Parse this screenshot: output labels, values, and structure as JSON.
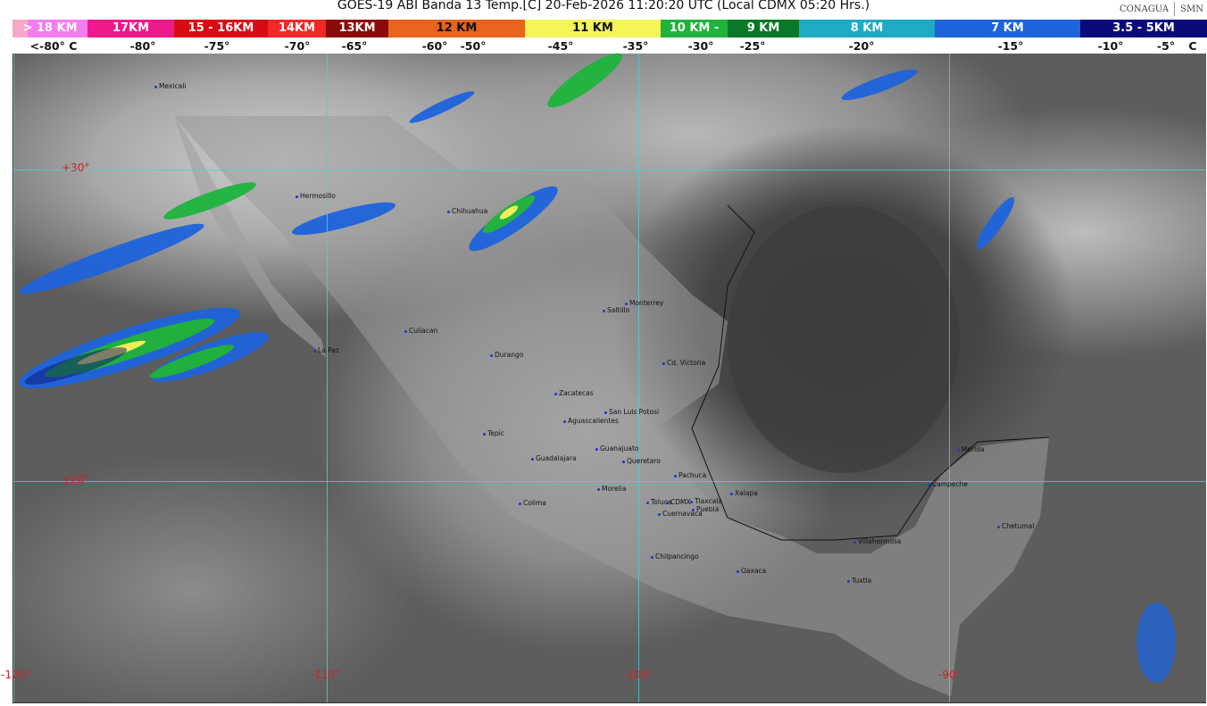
{
  "title": "GOES-19 ABI Banda 13 Temp.[C] 20-Feb-2026 11:20:20 UTC (Local CDMX  05:20 Hrs.)",
  "logos": [
    "CONAGUA",
    "SMN"
  ],
  "legend": [
    {
      "label": "> 18 KM",
      "color": "#f47ef0"
    },
    {
      "label": "17KM",
      "color": "#f0198c"
    },
    {
      "label": "15 - 16KM",
      "color": "#d90a14"
    },
    {
      "label": "14KM",
      "color": "#f02828"
    },
    {
      "label": "13KM",
      "color": "#8c0a0a"
    },
    {
      "label": "12 KM",
      "color": "#e8641c"
    },
    {
      "label": "11 KM",
      "color": "#f5f55a"
    },
    {
      "label": "10 KM -",
      "color": "#1eb43c"
    },
    {
      "label": "9 KM",
      "color": "#0a7828"
    },
    {
      "label": "8 KM",
      "color": "#1eaac3"
    },
    {
      "label": "7 KM",
      "color": "#1e64dc"
    },
    {
      "label": "3.5 - 5KM",
      "color": "#0a0a78"
    }
  ],
  "temps": [
    "<-80° C",
    "-80°",
    "-75°",
    "-70°",
    "-65°",
    "-60°",
    "-50°",
    "-45°",
    "-35°",
    "-30°",
    "-25°",
    "-20°",
    "-15°",
    "-10°",
    "-5°",
    "C"
  ],
  "grid": {
    "lat": [
      "+30°",
      "+20°"
    ],
    "lon": [
      "-120°",
      "-110°",
      "-100°",
      "-90°"
    ]
  },
  "cities": [
    "Mexicali",
    "Hermosillo",
    "Chihuahua",
    "La Paz",
    "Culiacan",
    "Durango",
    "Saltillo",
    "Monterrey",
    "Cd. Victoria",
    "Zacatecas",
    "San Luis Potosi",
    "Aguascalientes",
    "Tepic",
    "Guanajuato",
    "Guadalajara",
    "Queretaro",
    "Pachuca",
    "Morelia",
    "Xalapa",
    "Colima",
    "Toluca",
    "CDMX",
    "Tlaxcala",
    "Puebla",
    "Cuernavaca",
    "Chilpancingo",
    "Oaxaca",
    "Villahermosa",
    "Tuxtla",
    "Merida",
    "Campeche",
    "Chetumal"
  ]
}
